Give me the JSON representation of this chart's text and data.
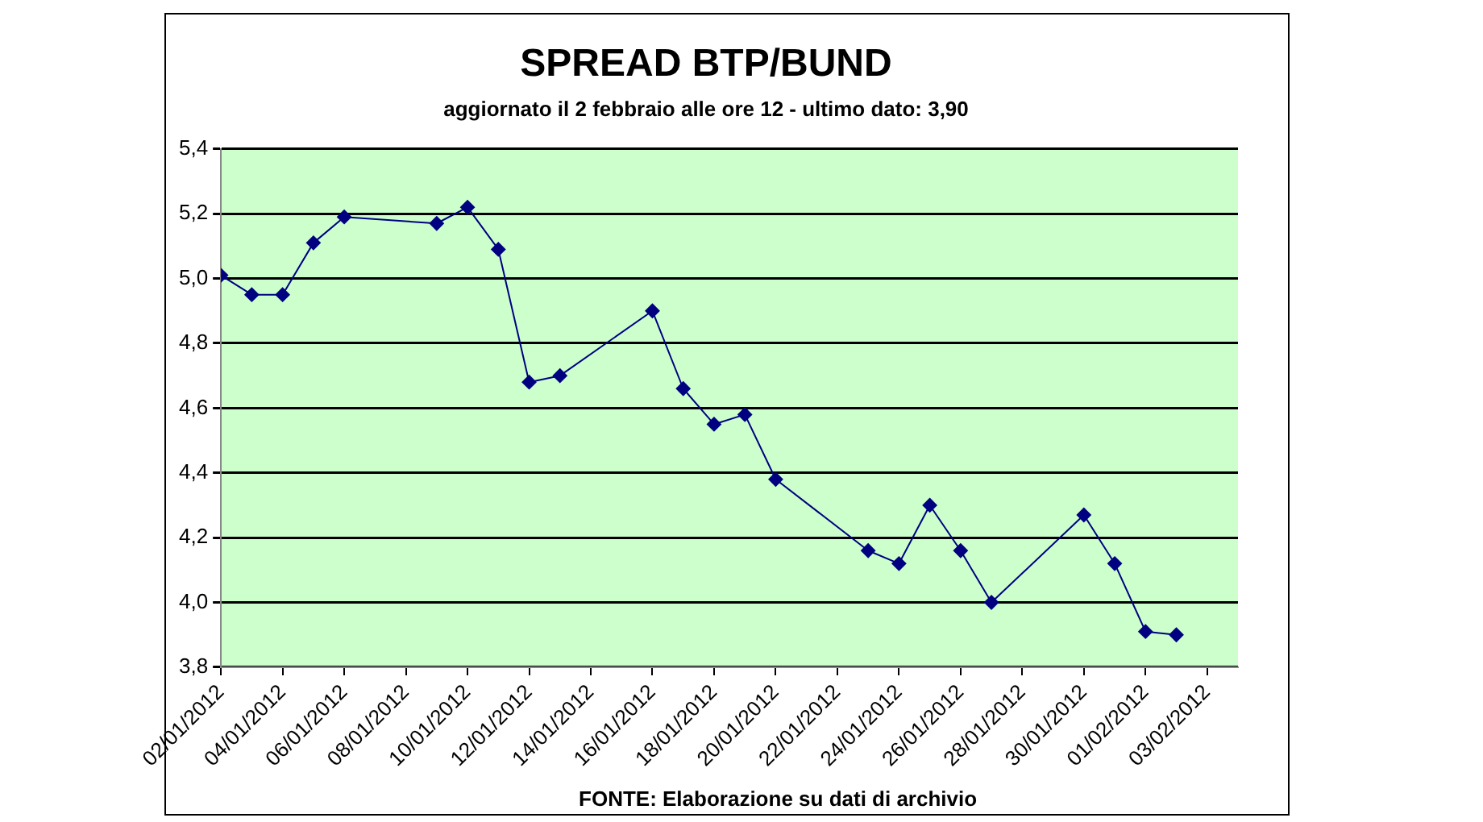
{
  "chart_data": {
    "type": "line",
    "title": "SPREAD BTP/BUND",
    "subtitle": "aggiornato il 2 febbraio alle ore 12 - ultimo dato: 3,90",
    "annotations": [
      "FONTE: Elaborazione su dati di archivio"
    ],
    "x": [
      "2012-01-02",
      "2012-01-03",
      "2012-01-04",
      "2012-01-05",
      "2012-01-06",
      "2012-01-09",
      "2012-01-10",
      "2012-01-11",
      "2012-01-12",
      "2012-01-13",
      "2012-01-16",
      "2012-01-17",
      "2012-01-18",
      "2012-01-19",
      "2012-01-20",
      "2012-01-23",
      "2012-01-24",
      "2012-01-25",
      "2012-01-26",
      "2012-01-27",
      "2012-01-30",
      "2012-01-31",
      "2012-02-01",
      "2012-02-02"
    ],
    "series": [
      {
        "color": "#000080",
        "values": [
          5.01,
          4.95,
          4.95,
          5.11,
          5.19,
          5.17,
          5.22,
          5.09,
          4.68,
          4.7,
          4.9,
          4.66,
          4.55,
          4.58,
          4.38,
          4.16,
          4.12,
          4.3,
          4.16,
          4.0,
          4.27,
          4.12,
          3.91,
          3.9
        ]
      }
    ],
    "xlim": [
      "2012-01-02",
      "2012-02-04"
    ],
    "xticks": [
      {
        "value": "2012-01-02",
        "label": "02/01/2012"
      },
      {
        "value": "2012-01-04",
        "label": "04/01/2012"
      },
      {
        "value": "2012-01-06",
        "label": "06/01/2012"
      },
      {
        "value": "2012-01-08",
        "label": "08/01/2012"
      },
      {
        "value": "2012-01-10",
        "label": "10/01/2012"
      },
      {
        "value": "2012-01-12",
        "label": "12/01/2012"
      },
      {
        "value": "2012-01-14",
        "label": "14/01/2012"
      },
      {
        "value": "2012-01-16",
        "label": "16/01/2012"
      },
      {
        "value": "2012-01-18",
        "label": "18/01/2012"
      },
      {
        "value": "2012-01-20",
        "label": "20/01/2012"
      },
      {
        "value": "2012-01-22",
        "label": "22/01/2012"
      },
      {
        "value": "2012-01-24",
        "label": "24/01/2012"
      },
      {
        "value": "2012-01-26",
        "label": "26/01/2012"
      },
      {
        "value": "2012-01-28",
        "label": "28/01/2012"
      },
      {
        "value": "2012-01-30",
        "label": "30/01/2012"
      },
      {
        "value": "2012-02-01",
        "label": "01/02/2012"
      },
      {
        "value": "2012-02-03",
        "label": "03/02/2012"
      }
    ],
    "ylim": [
      3.8,
      5.4
    ],
    "yticks": [
      {
        "value": 3.8,
        "label": "3,8"
      },
      {
        "value": 4.0,
        "label": "4,0"
      },
      {
        "value": 4.2,
        "label": "4,2"
      },
      {
        "value": 4.4,
        "label": "4,4"
      },
      {
        "value": 4.6,
        "label": "4,6"
      },
      {
        "value": 4.8,
        "label": "4,8"
      },
      {
        "value": 5.0,
        "label": "5,0"
      },
      {
        "value": 5.2,
        "label": "5,2"
      },
      {
        "value": 5.4,
        "label": "5,4"
      }
    ],
    "grid": "y",
    "legend": false,
    "marker": "diamond",
    "line_style": "solid"
  }
}
